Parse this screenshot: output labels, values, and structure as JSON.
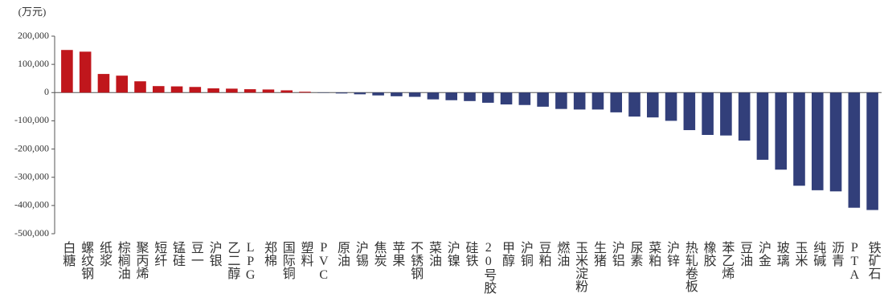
{
  "chart_data": {
    "type": "bar",
    "unit_label": "(万元)",
    "categories": [
      "白糖",
      "螺纹钢",
      "纸浆",
      "棕榈油",
      "聚丙烯",
      "短纤",
      "锰硅",
      "豆一",
      "沪银",
      "乙二醇",
      "LPG",
      "郑棉",
      "国际铜",
      "塑料",
      "PVC",
      "原油",
      "沪锡",
      "焦炭",
      "苹果",
      "不锈钢",
      "菜油",
      "沪镍",
      "硅铁",
      "20号胶",
      "甲醇",
      "沪铜",
      "豆粕",
      "燃油",
      "玉米淀粉",
      "生猪",
      "沪铝",
      "尿素",
      "菜粕",
      "沪锌",
      "热轧卷板",
      "橡胶",
      "苯乙烯",
      "豆油",
      "沪金",
      "玻璃",
      "玉米",
      "纯碱",
      "沥青",
      "PTA",
      "铁矿石"
    ],
    "values": [
      151000,
      145000,
      66000,
      60000,
      40000,
      23000,
      22000,
      20000,
      15000,
      14000,
      12000,
      11000,
      8000,
      3000,
      -1000,
      -3000,
      -6000,
      -10000,
      -13000,
      -15000,
      -24000,
      -27000,
      -30000,
      -36000,
      -42000,
      -44000,
      -50000,
      -58000,
      -60000,
      -60000,
      -70000,
      -85000,
      -88000,
      -100000,
      -133000,
      -150000,
      -152000,
      -170000,
      -238000,
      -273000,
      -330000,
      -346000,
      -350000,
      -408000,
      -416000
    ],
    "color_positive": "#c0161c",
    "color_negative": "#323f7a",
    "ylim": [
      -500000,
      200000
    ],
    "yticks": [
      {
        "value": 200000,
        "label": "200,000"
      },
      {
        "value": 100000,
        "label": "100,000"
      },
      0,
      {
        "value": -100000,
        "label": "-100,000"
      },
      {
        "value": -200000,
        "label": "-200,000"
      },
      {
        "value": -300000,
        "label": "-300,000"
      },
      {
        "value": -400000,
        "label": "-400,000"
      },
      {
        "value": -500000,
        "label": "-500,000"
      }
    ],
    "grid": false
  }
}
